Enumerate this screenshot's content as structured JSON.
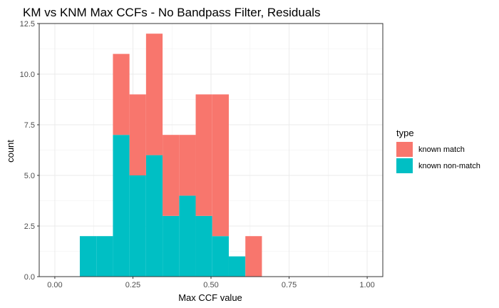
{
  "chart_data": {
    "type": "histogram",
    "title": "KM vs KNM Max CCFs - No Bandpass Filter, Residuals",
    "xlabel": "Max CCF value",
    "ylabel": "count",
    "xlim": [
      -0.05,
      1.05
    ],
    "ylim": [
      0,
      12.5
    ],
    "x_ticks": [
      "0.00",
      "0.25",
      "0.50",
      "0.75",
      "1.00"
    ],
    "x_tick_values": [
      0,
      0.25,
      0.5,
      0.75,
      1.0
    ],
    "y_ticks": [
      "0.0",
      "2.5",
      "5.0",
      "7.5",
      "10.0",
      "12.5"
    ],
    "y_tick_values": [
      0,
      2.5,
      5,
      7.5,
      10,
      12.5
    ],
    "stacked": true,
    "bin_edges": [
      0.08,
      0.133,
      0.186,
      0.239,
      0.292,
      0.345,
      0.398,
      0.451,
      0.504,
      0.557,
      0.61,
      0.663
    ],
    "series": [
      {
        "name": "known non-match",
        "color": "#00BFC4",
        "values": [
          2,
          2,
          7,
          5,
          6,
          3,
          4,
          3,
          2,
          1,
          0
        ]
      },
      {
        "name": "known match",
        "color": "#F8766D",
        "values": [
          0,
          0,
          4,
          4,
          6,
          4,
          3,
          6,
          7,
          0,
          2
        ]
      }
    ],
    "grid": true,
    "legend_position": "right",
    "legend_title": "type",
    "legend_items": [
      {
        "name": "known match",
        "color": "#F8766D"
      },
      {
        "name": "known non-match",
        "color": "#00BFC4"
      }
    ]
  }
}
